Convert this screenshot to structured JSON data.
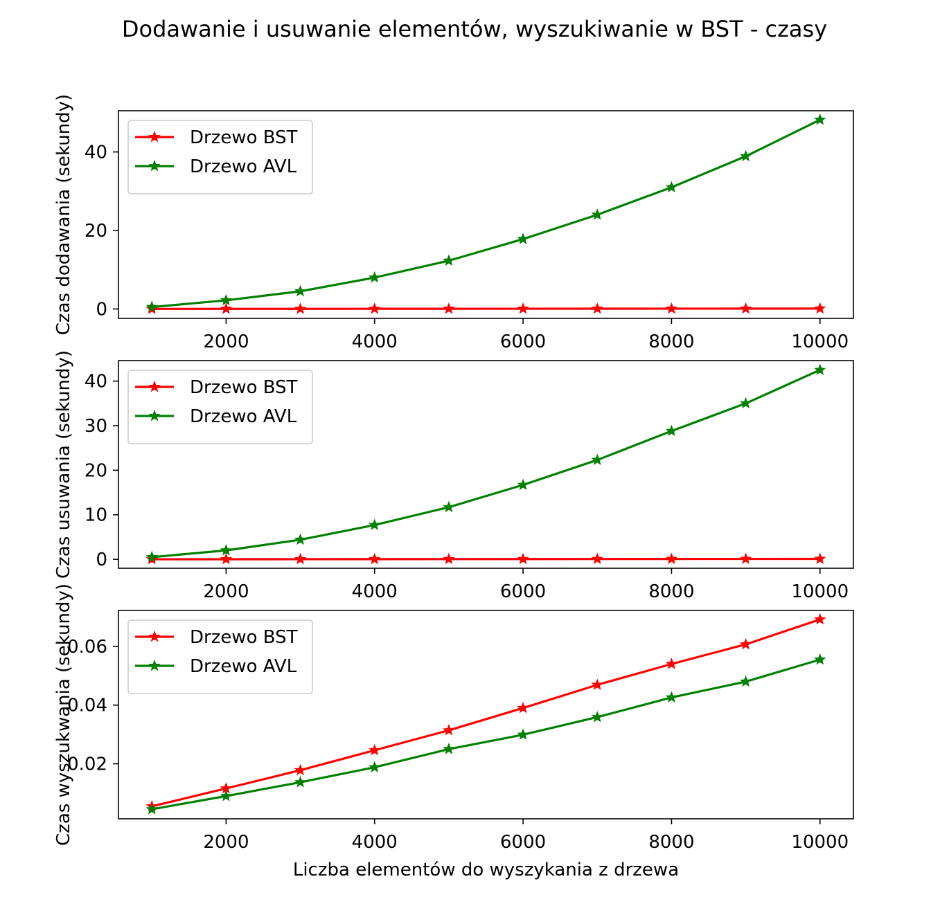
{
  "figure": {
    "title": "Dodawanie i usuwanie elementów, wyszukiwanie w BST  - czasy"
  },
  "chart_data": [
    {
      "type": "line",
      "title": "",
      "xlabel": "",
      "ylabel": "Czas dodawania (sekundy)",
      "x": [
        1000,
        2000,
        3000,
        4000,
        5000,
        6000,
        7000,
        8000,
        9000,
        10000
      ],
      "xlim": [
        550,
        10450
      ],
      "ylim": [
        -2.4,
        50.5
      ],
      "xticks": [
        2000,
        4000,
        6000,
        8000,
        10000
      ],
      "yticks": [
        0,
        20,
        40
      ],
      "ytick_labels": [
        "0",
        "20",
        "40"
      ],
      "grid": false,
      "legend_position": "upper left",
      "series": [
        {
          "name": "Drzewo BST",
          "color": "#ff0000",
          "marker": "star",
          "values": [
            0.01,
            0.02,
            0.03,
            0.04,
            0.05,
            0.06,
            0.07,
            0.08,
            0.09,
            0.1
          ]
        },
        {
          "name": "Drzewo AVL",
          "color": "#008000",
          "marker": "star",
          "values": [
            0.5,
            2.2,
            4.5,
            8.0,
            12.3,
            17.8,
            24.0,
            31.0,
            38.9,
            48.2
          ]
        }
      ]
    },
    {
      "type": "line",
      "title": "",
      "xlabel": "",
      "ylabel": "Czas usuwania (sekundy)",
      "x": [
        1000,
        2000,
        3000,
        4000,
        5000,
        6000,
        7000,
        8000,
        9000,
        10000
      ],
      "xlim": [
        550,
        10450
      ],
      "ylim": [
        -2.0,
        44.6
      ],
      "xticks": [
        2000,
        4000,
        6000,
        8000,
        10000
      ],
      "yticks": [
        0,
        10,
        20,
        30,
        40
      ],
      "ytick_labels": [
        "0",
        "10",
        "20",
        "30",
        "40"
      ],
      "grid": false,
      "legend_position": "upper left",
      "series": [
        {
          "name": "Drzewo BST",
          "color": "#ff0000",
          "marker": "star",
          "values": [
            0.01,
            0.02,
            0.03,
            0.04,
            0.05,
            0.06,
            0.07,
            0.08,
            0.09,
            0.1
          ]
        },
        {
          "name": "Drzewo AVL",
          "color": "#008000",
          "marker": "star",
          "values": [
            0.5,
            2.0,
            4.4,
            7.7,
            11.7,
            16.7,
            22.3,
            28.8,
            35.0,
            42.5
          ]
        }
      ]
    },
    {
      "type": "line",
      "title": "",
      "xlabel": "Liczba elementów do wyszykania z drzewa",
      "ylabel": "Czas wyszukwania (sekundy)",
      "x": [
        1000,
        2000,
        3000,
        4000,
        5000,
        6000,
        7000,
        8000,
        9000,
        10000
      ],
      "xlim": [
        550,
        10450
      ],
      "ylim": [
        0.00125,
        0.07225
      ],
      "xticks": [
        2000,
        4000,
        6000,
        8000,
        10000
      ],
      "yticks": [
        0.02,
        0.04,
        0.06
      ],
      "ytick_labels": [
        "0.02",
        "0.04",
        "0.06"
      ],
      "grid": false,
      "legend_position": "upper left",
      "series": [
        {
          "name": "Drzewo BST",
          "color": "#ff0000",
          "marker": "star",
          "values": [
            0.0055,
            0.0116,
            0.0178,
            0.0246,
            0.0314,
            0.039,
            0.0469,
            0.054,
            0.0607,
            0.0692
          ]
        },
        {
          "name": "Drzewo AVL",
          "color": "#008000",
          "marker": "star",
          "values": [
            0.0045,
            0.009,
            0.0137,
            0.0188,
            0.025,
            0.0299,
            0.0359,
            0.0426,
            0.048,
            0.0555
          ]
        }
      ]
    }
  ]
}
